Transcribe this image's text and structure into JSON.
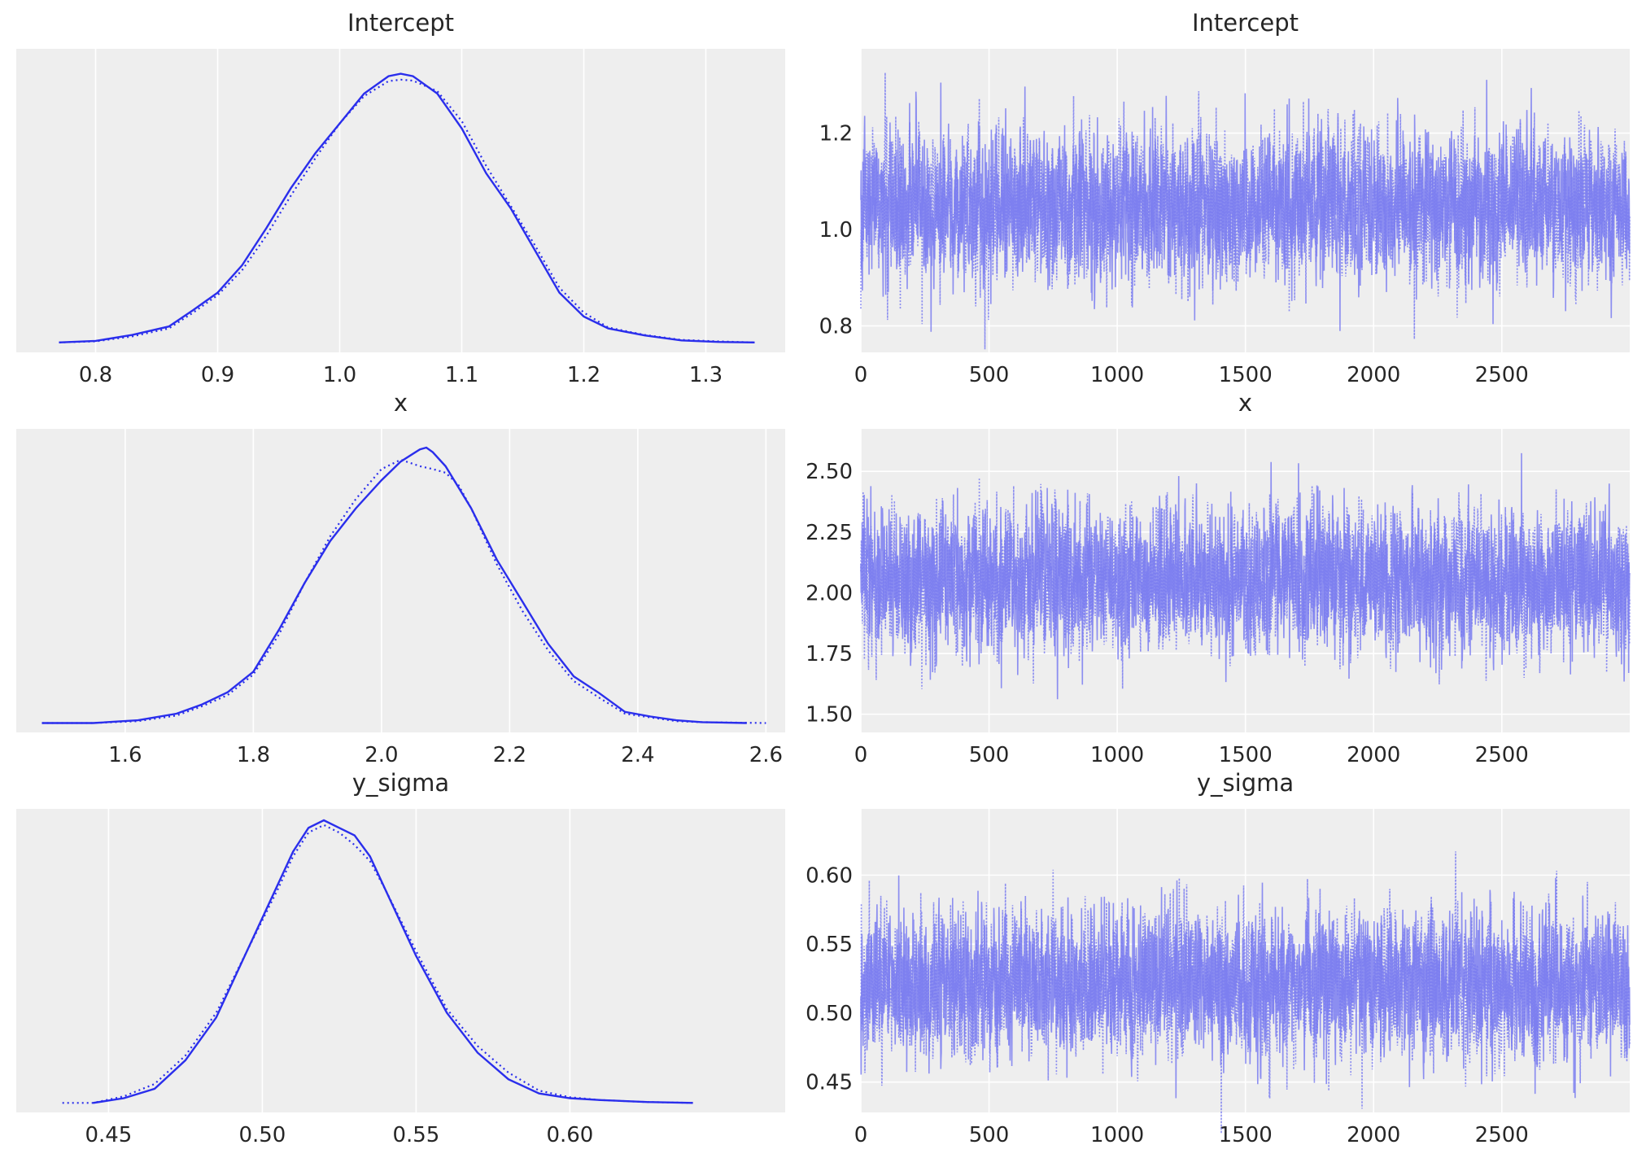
{
  "colors": {
    "panel_bg": "#eeeeee",
    "grid": "#ffffff",
    "kde": "#2a2eec",
    "trace": "#7a7cf0",
    "text": "#262626"
  },
  "chart_data": [
    {
      "type": "line",
      "variant": "kde",
      "title": "Intercept",
      "xlabel": "",
      "ylabel": "",
      "xlim": [
        0.735,
        1.365
      ],
      "ylim": [
        -0.2,
        5.9
      ],
      "xticks": [
        "0.8",
        "0.9",
        "1.0",
        "1.1",
        "1.2",
        "1.3"
      ],
      "grid": true,
      "yticks_visible": false,
      "series": [
        {
          "style": "solid",
          "x": [
            0.77,
            0.8,
            0.83,
            0.86,
            0.88,
            0.9,
            0.92,
            0.94,
            0.96,
            0.98,
            1.0,
            1.02,
            1.04,
            1.05,
            1.06,
            1.08,
            1.1,
            1.12,
            1.14,
            1.16,
            1.18,
            1.2,
            1.22,
            1.25,
            1.28,
            1.31,
            1.34
          ],
          "y": [
            0.0,
            0.03,
            0.15,
            0.32,
            0.65,
            1.0,
            1.55,
            2.3,
            3.1,
            3.8,
            4.4,
            5.0,
            5.35,
            5.4,
            5.35,
            5.0,
            4.3,
            3.4,
            2.7,
            1.85,
            1.0,
            0.52,
            0.28,
            0.14,
            0.04,
            0.01,
            0.0
          ]
        },
        {
          "style": "dotted",
          "x": [
            0.77,
            0.8,
            0.83,
            0.86,
            0.88,
            0.9,
            0.92,
            0.94,
            0.96,
            0.98,
            1.0,
            1.02,
            1.04,
            1.05,
            1.06,
            1.08,
            1.1,
            1.12,
            1.14,
            1.16,
            1.18,
            1.2,
            1.22,
            1.25,
            1.28,
            1.31,
            1.34
          ],
          "y": [
            0.0,
            0.02,
            0.12,
            0.28,
            0.6,
            0.95,
            1.45,
            2.15,
            2.95,
            3.7,
            4.4,
            4.95,
            5.25,
            5.28,
            5.26,
            5.05,
            4.45,
            3.55,
            2.75,
            1.95,
            1.1,
            0.6,
            0.3,
            0.15,
            0.05,
            0.02,
            0.0
          ]
        }
      ]
    },
    {
      "type": "line",
      "variant": "trace",
      "title": "Intercept",
      "xlabel": "",
      "ylabel": "",
      "xlim": [
        0,
        2999
      ],
      "ylim": [
        0.745,
        1.375
      ],
      "xticks": [
        "0",
        "500",
        "1000",
        "1500",
        "2000",
        "2500"
      ],
      "yticks": [
        "0.8",
        "1.0",
        "1.2"
      ],
      "grid": true,
      "draws": 3000,
      "chains": 2,
      "center": 1.05,
      "spread": 0.075,
      "series": [
        {
          "style": "solid"
        },
        {
          "style": "dotted"
        }
      ]
    },
    {
      "type": "line",
      "variant": "kde",
      "title": "x",
      "xlabel": "",
      "ylabel": "",
      "xlim": [
        1.43,
        2.63
      ],
      "ylim": [
        -0.1,
        3.15
      ],
      "xticks": [
        "1.6",
        "1.8",
        "2.0",
        "2.2",
        "2.4",
        "2.6"
      ],
      "grid": true,
      "yticks_visible": false,
      "series": [
        {
          "style": "solid",
          "x": [
            1.47,
            1.55,
            1.62,
            1.68,
            1.72,
            1.76,
            1.8,
            1.84,
            1.88,
            1.92,
            1.96,
            2.0,
            2.03,
            2.06,
            2.07,
            2.08,
            2.1,
            2.14,
            2.18,
            2.22,
            2.26,
            2.3,
            2.34,
            2.38,
            2.42,
            2.46,
            2.5,
            2.57
          ],
          "y": [
            0.0,
            0.0,
            0.03,
            0.1,
            0.2,
            0.33,
            0.55,
            1.0,
            1.5,
            1.95,
            2.3,
            2.6,
            2.8,
            2.93,
            2.95,
            2.9,
            2.75,
            2.3,
            1.75,
            1.3,
            0.85,
            0.5,
            0.32,
            0.12,
            0.07,
            0.03,
            0.01,
            0.0
          ]
        },
        {
          "style": "dotted",
          "x": [
            1.47,
            1.55,
            1.62,
            1.68,
            1.72,
            1.76,
            1.8,
            1.84,
            1.88,
            1.92,
            1.96,
            2.0,
            2.03,
            2.06,
            2.08,
            2.1,
            2.12,
            2.14,
            2.18,
            2.22,
            2.26,
            2.3,
            2.34,
            2.38,
            2.42,
            2.46,
            2.5,
            2.6
          ],
          "y": [
            0.0,
            0.0,
            0.02,
            0.08,
            0.18,
            0.3,
            0.52,
            0.95,
            1.5,
            2.0,
            2.4,
            2.72,
            2.82,
            2.75,
            2.72,
            2.68,
            2.55,
            2.3,
            1.7,
            1.2,
            0.78,
            0.45,
            0.27,
            0.1,
            0.06,
            0.02,
            0.01,
            0.0
          ]
        }
      ]
    },
    {
      "type": "line",
      "variant": "trace",
      "title": "x",
      "xlabel": "",
      "ylabel": "",
      "xlim": [
        0,
        2999
      ],
      "ylim": [
        1.425,
        2.675
      ],
      "xticks": [
        "0",
        "500",
        "1000",
        "1500",
        "2000",
        "2500"
      ],
      "yticks": [
        "1.50",
        "1.75",
        "2.00",
        "2.25",
        "2.50"
      ],
      "grid": true,
      "draws": 3000,
      "chains": 2,
      "center": 2.05,
      "spread": 0.14,
      "series": [
        {
          "style": "solid"
        },
        {
          "style": "dotted"
        }
      ]
    },
    {
      "type": "line",
      "variant": "kde",
      "title": "y_sigma",
      "xlabel": "",
      "ylabel": "",
      "xlim": [
        0.42,
        0.67
      ],
      "ylim": [
        -1.0,
        31.0
      ],
      "xticks": [
        "0.45",
        "0.50",
        "0.55",
        "0.60"
      ],
      "grid": true,
      "yticks_visible": false,
      "series": [
        {
          "style": "solid",
          "x": [
            0.445,
            0.455,
            0.465,
            0.475,
            0.485,
            0.495,
            0.505,
            0.51,
            0.515,
            0.52,
            0.525,
            0.53,
            0.535,
            0.54,
            0.55,
            0.56,
            0.57,
            0.58,
            0.59,
            0.6,
            0.61,
            0.625,
            0.64
          ],
          "y": [
            0.0,
            0.5,
            1.5,
            4.5,
            9.0,
            16.0,
            23.0,
            26.5,
            29.0,
            29.8,
            29.0,
            28.2,
            26.0,
            22.5,
            15.5,
            9.5,
            5.3,
            2.5,
            1.0,
            0.5,
            0.3,
            0.1,
            0.0
          ]
        },
        {
          "style": "dotted",
          "x": [
            0.435,
            0.445,
            0.455,
            0.465,
            0.475,
            0.485,
            0.495,
            0.505,
            0.51,
            0.515,
            0.52,
            0.525,
            0.53,
            0.535,
            0.54,
            0.55,
            0.56,
            0.57,
            0.58,
            0.59,
            0.6,
            0.61,
            0.625,
            0.64
          ],
          "y": [
            0.0,
            0.0,
            0.7,
            2.0,
            5.0,
            9.5,
            16.0,
            22.5,
            26.0,
            28.5,
            29.3,
            28.5,
            27.2,
            25.5,
            22.5,
            16.0,
            9.9,
            6.0,
            3.2,
            1.3,
            0.6,
            0.3,
            0.1,
            0.0
          ]
        }
      ]
    },
    {
      "type": "line",
      "variant": "trace",
      "title": "y_sigma",
      "xlabel": "",
      "ylabel": "",
      "xlim": [
        0,
        2999
      ],
      "ylim": [
        0.428,
        0.648
      ],
      "xticks": [
        "0",
        "500",
        "1000",
        "1500",
        "2000",
        "2500"
      ],
      "yticks": [
        "0.45",
        "0.50",
        "0.55",
        "0.60"
      ],
      "grid": true,
      "draws": 3000,
      "chains": 2,
      "center": 0.522,
      "spread": 0.025,
      "series": [
        {
          "style": "solid"
        },
        {
          "style": "dotted"
        }
      ]
    }
  ]
}
